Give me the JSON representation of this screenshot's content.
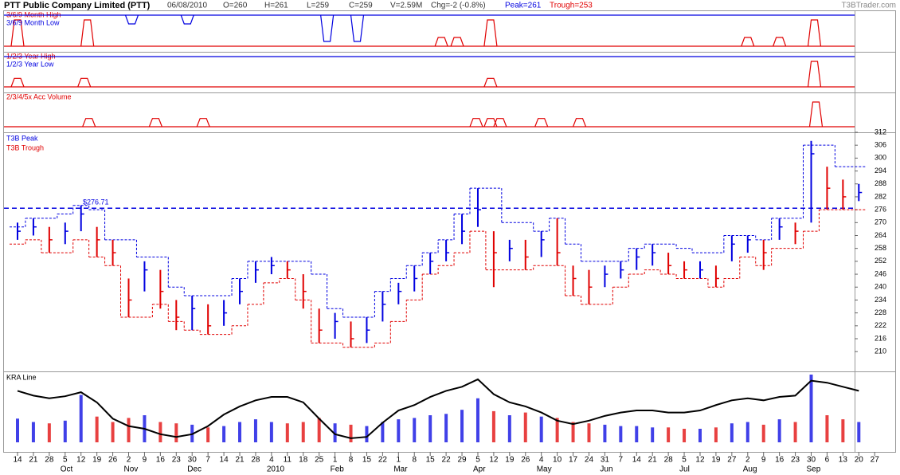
{
  "header": {
    "title": "PTT Public Company Limited (PTT)",
    "date": "06/08/2010",
    "open": "O=260",
    "high": "H=261",
    "low": "L=259",
    "close": "C=259",
    "volume": "V=2.59M",
    "change": "Chg=-2 (-0.8%)",
    "peak": "Peak=261",
    "trough": "Trough=253",
    "site": "T3BTrader.com"
  },
  "x_axis": {
    "categories": [
      "14",
      "21",
      "28",
      "5",
      "12",
      "19",
      "26",
      "2",
      "9",
      "16",
      "23",
      "30",
      "7",
      "14",
      "21",
      "28",
      "4",
      "11",
      "18",
      "25",
      "1",
      "8",
      "15",
      "22",
      "1",
      "8",
      "15",
      "22",
      "29",
      "5",
      "12",
      "19",
      "26",
      "4",
      "10",
      "17",
      "24",
      "31",
      "7",
      "14",
      "21",
      "28",
      "5",
      "12",
      "19",
      "27",
      "2",
      "9",
      "16",
      "23",
      "30",
      "6",
      "13",
      "20",
      "27"
    ],
    "months": [
      null,
      null,
      null,
      "Oct",
      null,
      null,
      null,
      "Nov",
      null,
      null,
      null,
      "Dec",
      null,
      null,
      null,
      null,
      "2010",
      null,
      null,
      null,
      "Feb",
      null,
      null,
      null,
      "Mar",
      null,
      null,
      null,
      null,
      "Apr",
      null,
      null,
      null,
      "May",
      null,
      null,
      null,
      "Jun",
      null,
      null,
      null,
      null,
      "Jul",
      null,
      null,
      null,
      "Aug",
      null,
      null,
      null,
      "Sep",
      null,
      null,
      null,
      null
    ]
  },
  "chart_data": [
    {
      "type": "signal",
      "ylim": [
        0,
        3
      ],
      "series": [
        {
          "name": "3/6/9 Month High",
          "color": "#e00000",
          "x": [
            0,
            4.4,
            26.7,
            27.7,
            29.8,
            46,
            48,
            50.2
          ],
          "values": [
            3,
            3,
            1,
            1,
            3,
            1,
            1,
            3
          ]
        },
        {
          "name": "3/6/9 Month Low",
          "color": "#0000e0",
          "x": [
            7.2,
            10.7,
            19.5,
            21.4
          ],
          "values": [
            1,
            1,
            3,
            3
          ]
        }
      ]
    },
    {
      "type": "signal",
      "ylim": [
        0,
        3
      ],
      "series": [
        {
          "name": "1/2/3 Year High",
          "color": "#e00000",
          "x": [
            0,
            4.2,
            29.8,
            50.2
          ],
          "values": [
            1,
            1,
            1,
            3
          ]
        },
        {
          "name": "1/2/3 Year Low",
          "color": "#0000e0",
          "x": [],
          "values": []
        }
      ]
    },
    {
      "type": "signal",
      "ylim": [
        0,
        3
      ],
      "series": [
        {
          "name": "2/3/4/5x Acc Volume",
          "color": "#e00000",
          "x": [
            4.5,
            8.7,
            11.7,
            28.9,
            29.8,
            30.4,
            33,
            35.4,
            50.3
          ],
          "values": [
            1,
            1,
            1,
            1,
            1,
            1,
            1,
            1,
            3
          ]
        }
      ]
    },
    {
      "type": "ohlc",
      "ylim": [
        200.8,
        312
      ],
      "yticks": [
        312,
        306,
        300,
        294,
        288,
        282,
        276,
        270,
        264,
        258,
        252,
        246,
        240,
        234,
        228,
        222,
        216,
        210
      ],
      "up_color": "#0000e0",
      "down_color": "#e00000",
      "high": [
        270,
        272,
        268,
        270,
        278,
        268,
        262,
        244,
        252,
        248,
        234,
        236,
        232,
        234,
        244,
        252,
        254,
        252,
        246,
        230,
        228,
        224,
        226,
        238,
        242,
        250,
        256,
        262,
        274,
        286,
        266,
        262,
        262,
        266,
        272,
        250,
        248,
        250,
        252,
        258,
        260,
        256,
        252,
        252,
        250,
        264,
        264,
        262,
        272,
        270,
        308,
        296,
        290,
        288,
        null
      ],
      "low": [
        262,
        264,
        256,
        260,
        266,
        254,
        250,
        226,
        238,
        230,
        220,
        220,
        218,
        222,
        232,
        242,
        246,
        244,
        230,
        214,
        216,
        212,
        214,
        224,
        232,
        238,
        246,
        252,
        260,
        268,
        240,
        252,
        248,
        254,
        250,
        236,
        232,
        240,
        244,
        248,
        250,
        246,
        244,
        244,
        240,
        252,
        256,
        248,
        262,
        260,
        270,
        276,
        276,
        280,
        null
      ],
      "close": [
        266,
        268,
        262,
        266,
        274,
        262,
        256,
        234,
        248,
        238,
        226,
        230,
        222,
        228,
        238,
        248,
        250,
        248,
        238,
        220,
        224,
        216,
        220,
        232,
        238,
        244,
        252,
        256,
        266,
        276,
        256,
        258,
        254,
        262,
        256,
        244,
        240,
        246,
        248,
        254,
        256,
        250,
        248,
        248,
        244,
        260,
        262,
        256,
        268,
        266,
        302,
        286,
        282,
        284,
        null
      ],
      "series": [
        {
          "name": "T3B Peak",
          "color": "#0000e0",
          "values": [
            268,
            272,
            272,
            274,
            278,
            276,
            262,
            262,
            254,
            254,
            240,
            236,
            236,
            236,
            244,
            252,
            252,
            252,
            252,
            246,
            230,
            226,
            226,
            238,
            244,
            250,
            256,
            262,
            274,
            286,
            286,
            270,
            270,
            266,
            272,
            260,
            252,
            252,
            252,
            258,
            260,
            260,
            258,
            256,
            256,
            264,
            264,
            262,
            272,
            272,
            306,
            306,
            296,
            296,
            null
          ]
        },
        {
          "name": "T3B Trough",
          "color": "#e00000",
          "values": [
            260,
            262,
            256,
            256,
            262,
            254,
            250,
            226,
            226,
            232,
            224,
            220,
            218,
            218,
            222,
            232,
            242,
            244,
            234,
            214,
            214,
            212,
            212,
            214,
            224,
            234,
            246,
            250,
            256,
            266,
            248,
            248,
            248,
            250,
            250,
            236,
            232,
            232,
            240,
            246,
            248,
            246,
            244,
            244,
            240,
            244,
            254,
            250,
            258,
            258,
            266,
            276,
            276,
            276,
            null
          ]
        }
      ],
      "reference_line": 276.71,
      "reference_label": "$276.71",
      "reference_color": "#0000e0"
    },
    {
      "type": "kra",
      "title": "KRA Line",
      "ylim": [
        0,
        100
      ],
      "line_color": "#000000",
      "kra": [
        76,
        69,
        65,
        68,
        74,
        59,
        35,
        24,
        20,
        12,
        8,
        12,
        24,
        41,
        53,
        62,
        67,
        67,
        59,
        35,
        12,
        6,
        8,
        29,
        47,
        55,
        67,
        76,
        82,
        93,
        71,
        59,
        53,
        44,
        32,
        27,
        32,
        39,
        44,
        47,
        47,
        44,
        44,
        47,
        55,
        62,
        65,
        62,
        67,
        69,
        91,
        88,
        82,
        76,
        null
      ],
      "volume": [
        35,
        30,
        28,
        32,
        70,
        38,
        30,
        36,
        40,
        30,
        28,
        26,
        22,
        24,
        30,
        34,
        30,
        28,
        30,
        36,
        28,
        26,
        24,
        30,
        34,
        36,
        40,
        42,
        48,
        65,
        46,
        40,
        44,
        38,
        36,
        30,
        28,
        26,
        24,
        24,
        22,
        22,
        20,
        20,
        22,
        28,
        30,
        26,
        34,
        30,
        100,
        40,
        34,
        30,
        null
      ]
    }
  ]
}
